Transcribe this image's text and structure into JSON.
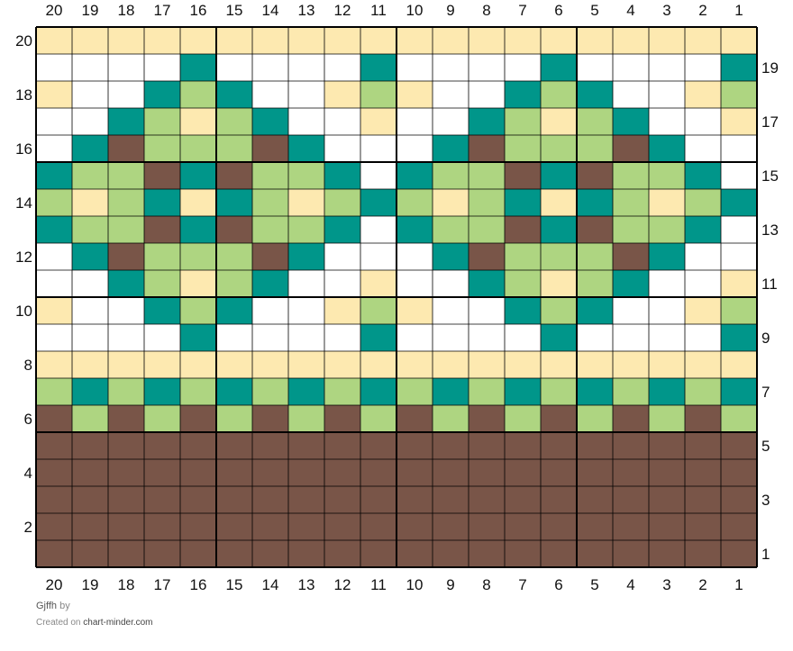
{
  "chart": {
    "title": "Gjffh",
    "by_label": "by",
    "created_on_label": "Created on",
    "site": "chart-minder.com"
  },
  "colors": {
    "W": "#ffffff",
    "Y": "#fde9b0",
    "T": "#00968a",
    "G": "#aed581",
    "B": "#795548"
  },
  "legend": {
    "W": "white",
    "Y": "cream",
    "T": "teal",
    "G": "light green",
    "B": "brown"
  },
  "grid": {
    "columns": 20,
    "rows": 20,
    "column_labels": [
      "20",
      "19",
      "18",
      "17",
      "16",
      "15",
      "14",
      "13",
      "12",
      "11",
      "10",
      "9",
      "8",
      "7",
      "6",
      "5",
      "4",
      "3",
      "2",
      "1"
    ],
    "left_row_labels": [
      "20",
      "18",
      "16",
      "14",
      "12",
      "10",
      "8",
      "6",
      "4",
      "2"
    ],
    "right_row_labels": [
      "19",
      "17",
      "15",
      "13",
      "11",
      "9",
      "7",
      "5",
      "3",
      "1"
    ],
    "rows_top_to_bottom": [
      "YYYYYYYYYYYYYYYYYYYY",
      "WWWWTWWWWTWWWWTWWWWT",
      "YWWTGTWWYGYWWTGTWWYG",
      "WWTGYGTWWYWWTGYGTWWY",
      "WTBGGGBTWWWTBGGGBTWW",
      "TGGBTBGGTWTGGBTBGGTW",
      "GYGTYTGYGTGYGTYTGYGT",
      "TGGBTBGGTWTGGBTBGGTW",
      "WTBGGGBTWWWTBGGGBTWW",
      "WWTGYGTWWYWWTGYGTWWY",
      "YWWTGTWWYGYWWTGTWWYG",
      "WWWWTWWWWTWWWWTWWWWT",
      "YYYYYYYYYYYYYYYYYYYY",
      "GTGTGTGTGTGTGTGTGTGT",
      "BGBGBGBGBGBGBGBGBGBG",
      "BBBBBBBBBBBBBBBBBBBB",
      "BBBBBBBBBBBBBBBBBBBB",
      "BBBBBBBBBBBBBBBBBBBB",
      "BBBBBBBBBBBBBBBBBBBB",
      "BBBBBBBBBBBBBBBBBBBB"
    ]
  }
}
